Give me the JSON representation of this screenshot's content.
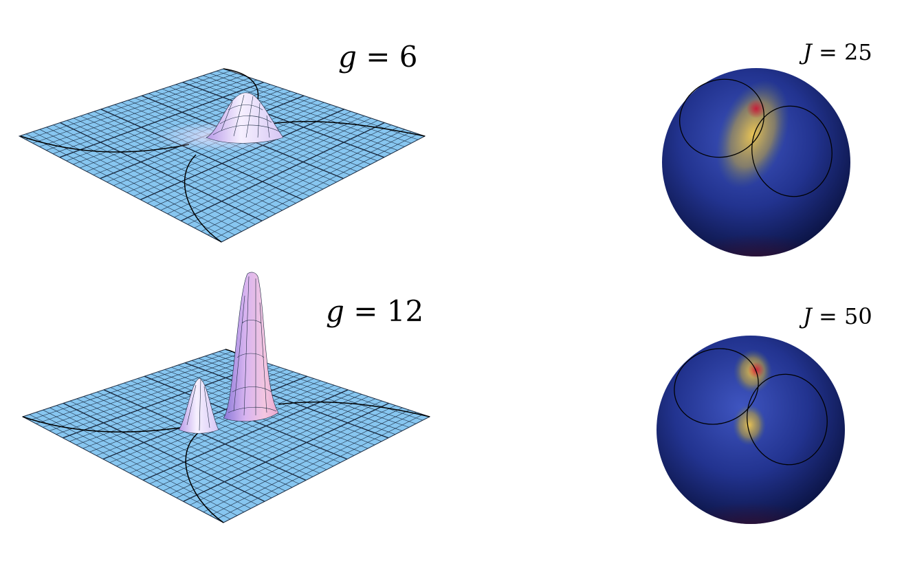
{
  "panels": [
    {
      "id": "surface-top",
      "type": "3d-surface",
      "label_var": "g",
      "label_op": " = ",
      "label_val": "6",
      "peaks": 1
    },
    {
      "id": "surface-bottom",
      "type": "3d-surface",
      "label_var": "g",
      "label_op": " = ",
      "label_val": "12",
      "peaks": 2
    },
    {
      "id": "sphere-top",
      "type": "sphere",
      "label_var": "J",
      "label_op": " = ",
      "label_val": "25",
      "hotspots": 1
    },
    {
      "id": "sphere-bottom",
      "type": "sphere",
      "label_var": "J",
      "label_op": " = ",
      "label_val": "50",
      "hotspots": 2
    }
  ],
  "colors": {
    "grid_fill": "#87c6f0",
    "grid_line": "#1a2a40",
    "curve": "#000000",
    "peak_light": "#f4eefc",
    "peak_mid": "#c6aef0",
    "peak_pink": "#f0b4d8",
    "sphere_dark": "#0a1a5a",
    "sphere_mid": "#2a3a9a",
    "hot_yellow": "#e6c040",
    "hot_red": "#c02040"
  }
}
